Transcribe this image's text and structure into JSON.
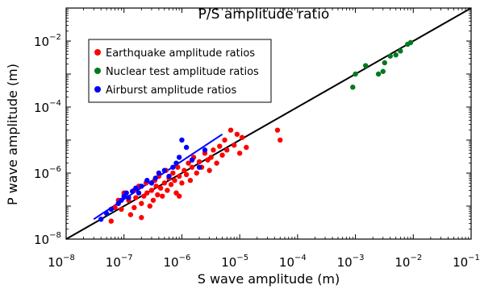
{
  "chart_data": {
    "type": "scatter",
    "title": "P/S amplitude ratio",
    "xlabel": "S wave amplitude (m)",
    "ylabel": "P wave amplitude (m)",
    "xscale": "log",
    "yscale": "log",
    "xlim": [
      1e-08,
      0.1
    ],
    "ylim": [
      1e-08,
      0.1
    ],
    "x_ticks": [
      {
        "base": "10",
        "exp": "−8"
      },
      {
        "base": "10",
        "exp": "−7"
      },
      {
        "base": "10",
        "exp": "−6"
      },
      {
        "base": "10",
        "exp": "−5"
      },
      {
        "base": "10",
        "exp": "−4"
      },
      {
        "base": "10",
        "exp": "−3"
      },
      {
        "base": "10",
        "exp": "−2"
      },
      {
        "base": "10",
        "exp": "−1"
      }
    ],
    "y_ticks": [
      {
        "base": "10",
        "exp": "−8"
      },
      {
        "base": "10",
        "exp": "−6"
      },
      {
        "base": "10",
        "exp": "−4"
      },
      {
        "base": "10",
        "exp": "−2"
      }
    ],
    "legend_position": "top-left",
    "grid": false,
    "series": [
      {
        "name": "Earthquake amplitude ratios",
        "color": "#ff0000",
        "points": [
          [
            6e-08,
            3.5e-08
          ],
          [
            7e-08,
            9e-08
          ],
          [
            8e-08,
            1.5e-07
          ],
          [
            9e-08,
            8e-08
          ],
          [
            1e-07,
            2.5e-07
          ],
          [
            1.2e-07,
            1.5e-07
          ],
          [
            1.3e-07,
            5.5e-08
          ],
          [
            1.5e-07,
            3e-07
          ],
          [
            1.6e-07,
            1.8e-07
          ],
          [
            1.8e-07,
            4e-07
          ],
          [
            2e-07,
            1.2e-07
          ],
          [
            2.2e-07,
            2e-07
          ],
          [
            2.4e-07,
            5e-07
          ],
          [
            2.5e-07,
            2.5e-07
          ],
          [
            2.8e-07,
            1e-07
          ],
          [
            3e-07,
            3e-07
          ],
          [
            3.2e-07,
            1.5e-07
          ],
          [
            3.4e-07,
            6e-07
          ],
          [
            3.6e-07,
            4e-07
          ],
          [
            3.8e-07,
            2.2e-07
          ],
          [
            4e-07,
            8e-07
          ],
          [
            4.3e-07,
            3.5e-07
          ],
          [
            4.6e-07,
            2e-07
          ],
          [
            5e-07,
            5e-07
          ],
          [
            5.3e-07,
            1.2e-06
          ],
          [
            5.6e-07,
            3e-07
          ],
          [
            6e-07,
            7e-07
          ],
          [
            6.5e-07,
            4.5e-07
          ],
          [
            7e-07,
            1e-06
          ],
          [
            7.5e-07,
            6e-07
          ],
          [
            8e-07,
            2.5e-07
          ],
          [
            8.5e-07,
            1.5e-06
          ],
          [
            9e-07,
            8e-07
          ],
          [
            1e-06,
            5e-07
          ],
          [
            1.1e-06,
            1.2e-06
          ],
          [
            1.2e-06,
            9e-07
          ],
          [
            1.3e-06,
            2e-06
          ],
          [
            1.4e-06,
            6e-07
          ],
          [
            1.5e-06,
            1.5e-06
          ],
          [
            1.6e-06,
            3e-06
          ],
          [
            1.8e-06,
            1e-06
          ],
          [
            2e-06,
            2.2e-06
          ],
          [
            2.2e-06,
            1.5e-06
          ],
          [
            2.5e-06,
            4e-06
          ],
          [
            2.8e-06,
            2.5e-06
          ],
          [
            3e-06,
            1.2e-06
          ],
          [
            3.2e-06,
            3e-06
          ],
          [
            3.5e-06,
            5e-06
          ],
          [
            4e-06,
            2e-06
          ],
          [
            4.5e-06,
            6.5e-06
          ],
          [
            5e-06,
            3.5e-06
          ],
          [
            5.5e-06,
            1e-05
          ],
          [
            6e-06,
            5e-06
          ],
          [
            7e-06,
            2e-05
          ],
          [
            8e-06,
            7e-06
          ],
          [
            9e-06,
            1.5e-05
          ],
          [
            1e-05,
            4e-06
          ],
          [
            1.1e-05,
            1.2e-05
          ],
          [
            1.3e-05,
            6e-06
          ],
          [
            4.5e-05,
            2e-05
          ],
          [
            5e-05,
            1e-05
          ],
          [
            2e-07,
            4.5e-08
          ],
          [
            1.5e-07,
            9e-08
          ],
          [
            9e-07,
            2e-07
          ]
        ]
      },
      {
        "name": "Nuclear test amplitude ratios",
        "color": "#007a1f",
        "points": [
          [
            0.0009,
            0.0004
          ],
          [
            0.001,
            0.001
          ],
          [
            0.0015,
            0.0018
          ],
          [
            0.0025,
            0.001
          ],
          [
            0.003,
            0.0012
          ],
          [
            0.0032,
            0.0022
          ],
          [
            0.004,
            0.0035
          ],
          [
            0.005,
            0.0038
          ],
          [
            0.006,
            0.005
          ],
          [
            0.008,
            0.008
          ],
          [
            0.009,
            0.009
          ]
        ]
      },
      {
        "name": "Airburst amplitude ratios",
        "color": "#0000ff",
        "points": [
          [
            4e-08,
            4e-08
          ],
          [
            5e-08,
            6e-08
          ],
          [
            6e-08,
            8e-08
          ],
          [
            8e-08,
            1.2e-07
          ],
          [
            9e-08,
            1.5e-07
          ],
          [
            1e-07,
            2e-07
          ],
          [
            1.1e-07,
            2.5e-07
          ],
          [
            1.2e-07,
            1.8e-07
          ],
          [
            1.4e-07,
            2.8e-07
          ],
          [
            1.6e-07,
            3.5e-07
          ],
          [
            1.8e-07,
            2.5e-07
          ],
          [
            2e-07,
            4e-07
          ],
          [
            2.5e-07,
            6e-07
          ],
          [
            3e-07,
            5e-07
          ],
          [
            3.5e-07,
            7e-07
          ],
          [
            4e-07,
            1e-06
          ],
          [
            5e-07,
            1.2e-06
          ],
          [
            6e-07,
            8e-07
          ],
          [
            7e-07,
            1.5e-06
          ],
          [
            8e-07,
            2e-06
          ],
          [
            9e-07,
            3e-06
          ],
          [
            1e-06,
            1e-05
          ],
          [
            1.2e-06,
            6e-06
          ],
          [
            1.5e-06,
            2.5e-06
          ],
          [
            2e-06,
            1.5e-06
          ],
          [
            2.5e-06,
            5e-06
          ]
        ]
      }
    ],
    "lines": [
      {
        "role": "one-to-one reference",
        "color": "#000000",
        "points": [
          [
            1e-08,
            1e-08
          ],
          [
            0.1,
            0.1
          ]
        ]
      },
      {
        "role": "airburst fit",
        "color": "#0000ff",
        "points": [
          [
            3e-08,
            4e-08
          ],
          [
            5e-06,
            1.5e-05
          ]
        ]
      }
    ]
  }
}
